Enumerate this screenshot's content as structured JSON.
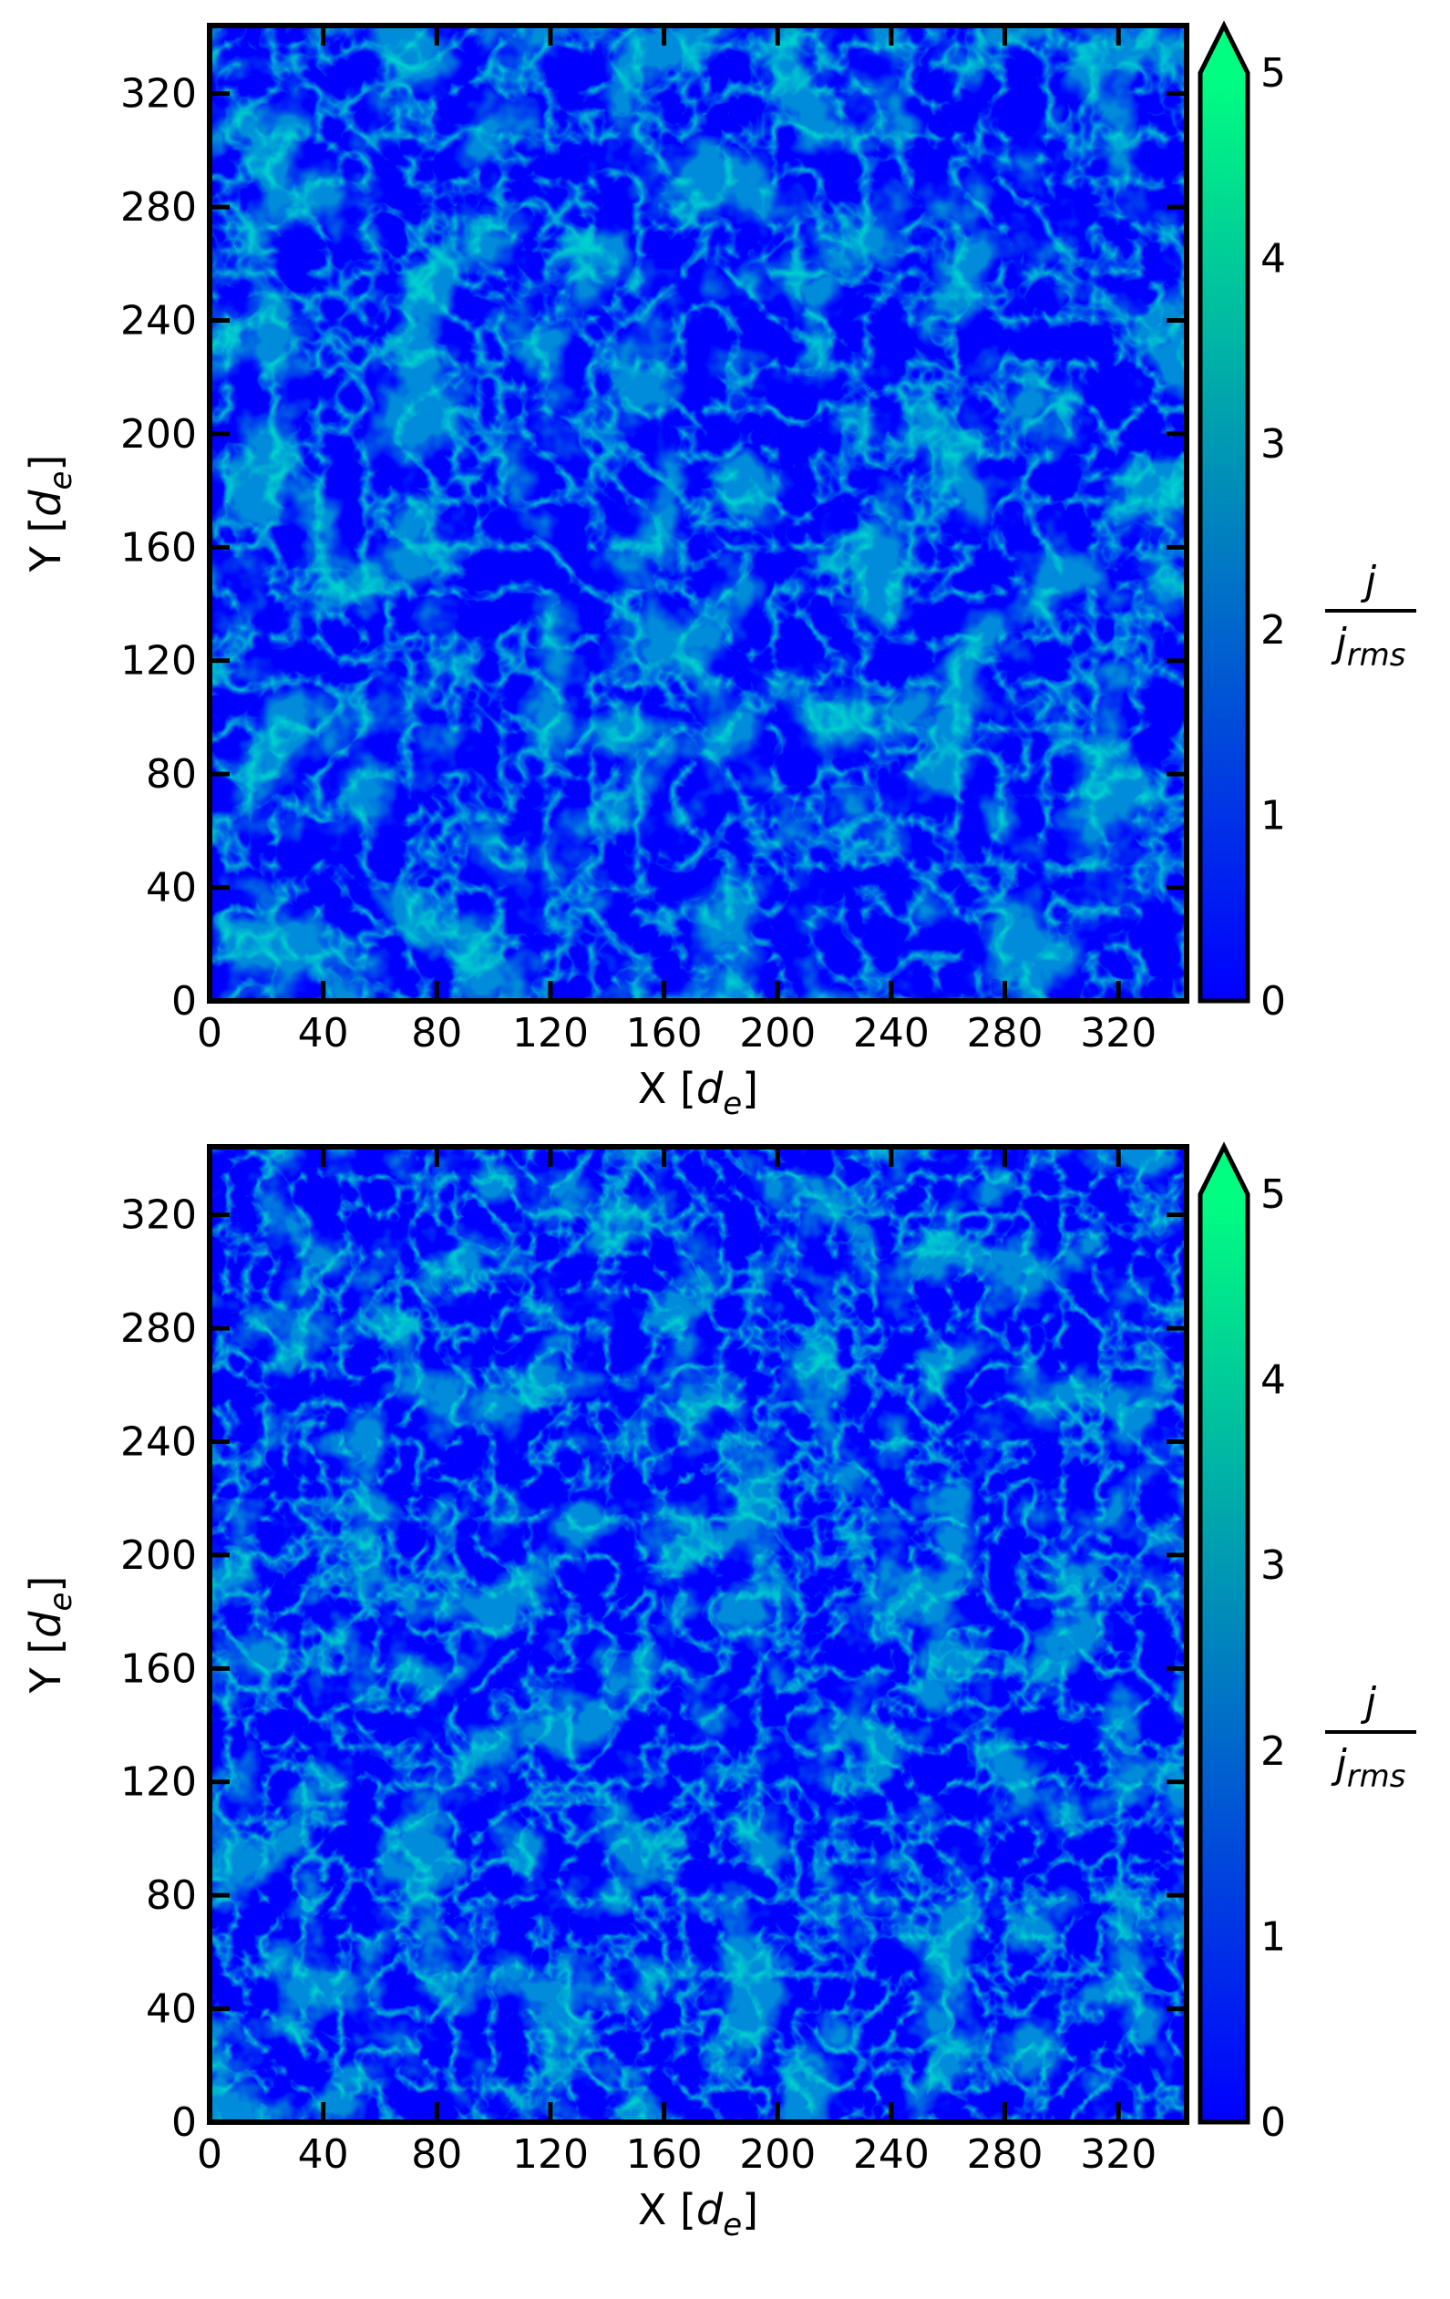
{
  "chart_data": [
    {
      "type": "heatmap",
      "panel": "top",
      "xlabel": "X [d_e]",
      "ylabel": "Y [d_e]",
      "xlim": [
        0,
        344
      ],
      "ylim": [
        0,
        344
      ],
      "x_ticks": [
        0,
        40,
        80,
        120,
        160,
        200,
        240,
        280,
        320
      ],
      "y_ticks": [
        0,
        40,
        80,
        120,
        160,
        200,
        240,
        280,
        320
      ],
      "colorbar": {
        "label_numerator": "j",
        "label_denominator": "j_rms",
        "range": [
          0,
          5
        ],
        "ticks": [
          0,
          1,
          2,
          3,
          4,
          5
        ],
        "extend": "max",
        "colors": [
          "#0000ff",
          "#00ff80"
        ]
      },
      "grid": false
    },
    {
      "type": "heatmap",
      "panel": "bottom",
      "xlabel": "X [d_e]",
      "ylabel": "Y [d_e]",
      "xlim": [
        0,
        344
      ],
      "ylim": [
        0,
        344
      ],
      "x_ticks": [
        0,
        40,
        80,
        120,
        160,
        200,
        240,
        280,
        320
      ],
      "y_ticks": [
        0,
        40,
        80,
        120,
        160,
        200,
        240,
        280,
        320
      ],
      "colorbar": {
        "label_numerator": "j",
        "label_denominator": "j_rms",
        "range": [
          0,
          5
        ],
        "ticks": [
          0,
          1,
          2,
          3,
          4,
          5
        ],
        "extend": "max",
        "colors": [
          "#0000ff",
          "#00ff80"
        ]
      },
      "grid": false
    }
  ]
}
